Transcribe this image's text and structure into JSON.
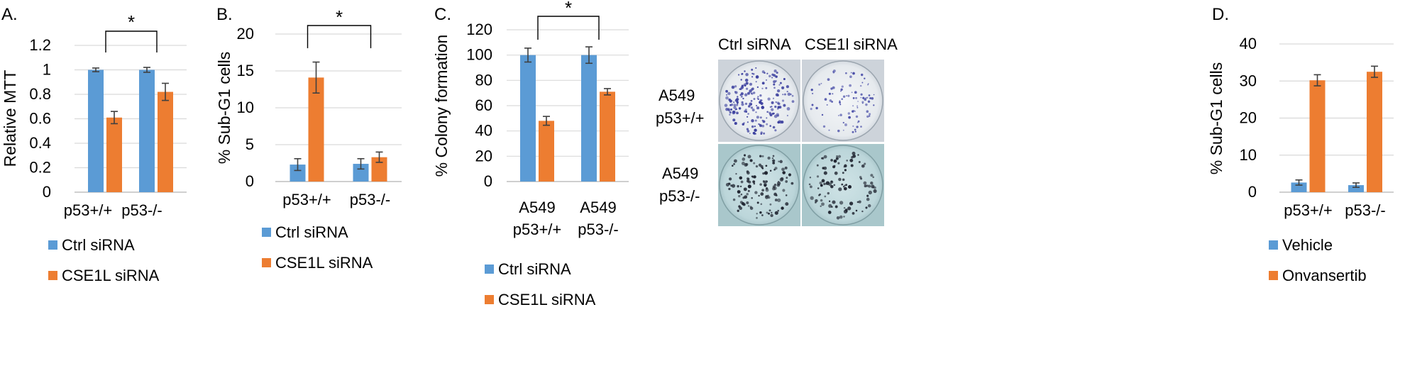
{
  "colors": {
    "ctrl": "#5B9BD5",
    "cse1l": "#ED7D31",
    "grid": "#D9D9D9",
    "axis": "#BFBFBF",
    "err": "#404040"
  },
  "chart_data": [
    {
      "panel": "A.",
      "type": "bar",
      "ylabel": "Relative MTT",
      "ylim": [
        0,
        1.2
      ],
      "yticks": [
        "0",
        "0.2",
        "0.4",
        "0.6",
        "0.8",
        "1",
        "1.2"
      ],
      "categories": [
        "p53+/+",
        "p53-/-"
      ],
      "series": [
        {
          "name": "Ctrl siRNA",
          "values": [
            1.0,
            1.0
          ],
          "errors": [
            0.015,
            0.02
          ]
        },
        {
          "name": "CSE1L siRNA",
          "values": [
            0.61,
            0.82
          ],
          "errors": [
            0.05,
            0.07
          ]
        }
      ],
      "significance": [
        {
          "label": "*",
          "between": [
            0,
            1
          ]
        }
      ]
    },
    {
      "panel": "B.",
      "type": "bar",
      "ylabel": "% Sub-G1 cells",
      "ylim": [
        0,
        20
      ],
      "yticks": [
        "0",
        "5",
        "10",
        "15",
        "20"
      ],
      "categories": [
        "p53+/+",
        "p53-/-"
      ],
      "series": [
        {
          "name": "Ctrl siRNA",
          "values": [
            2.3,
            2.4
          ],
          "errors": [
            0.8,
            0.7
          ]
        },
        {
          "name": "CSE1L siRNA",
          "values": [
            14.1,
            3.3
          ],
          "errors": [
            2.1,
            0.7
          ]
        }
      ],
      "significance": [
        {
          "label": "*",
          "between": [
            0,
            1
          ]
        }
      ]
    },
    {
      "panel": "C.",
      "type": "bar",
      "ylabel": "% Colony formation",
      "ylim": [
        0,
        120
      ],
      "yticks": [
        "0",
        "20",
        "40",
        "60",
        "80",
        "100",
        "120"
      ],
      "categories": [
        [
          "A549",
          "p53+/+"
        ],
        [
          "A549",
          "p53-/-"
        ]
      ],
      "series": [
        {
          "name": "Ctrl siRNA",
          "values": [
            100,
            100
          ],
          "errors": [
            5.5,
            6.5
          ]
        },
        {
          "name": "CSE1L siRNA",
          "values": [
            48,
            71
          ],
          "errors": [
            3.5,
            2.5
          ]
        }
      ],
      "significance": [
        {
          "label": "*",
          "between": [
            0,
            1
          ]
        }
      ]
    },
    {
      "panel": "D.",
      "type": "bar",
      "ylabel": "% Sub-G1 cells",
      "ylim": [
        0,
        40
      ],
      "yticks": [
        "0",
        "10",
        "20",
        "30",
        "40"
      ],
      "categories": [
        "p53+/+",
        "p53-/-"
      ],
      "series": [
        {
          "name": "Vehicle",
          "values": [
            2.6,
            1.9
          ],
          "errors": [
            0.7,
            0.6
          ]
        },
        {
          "name": "Onvansertib",
          "values": [
            30.2,
            32.5
          ],
          "errors": [
            1.5,
            1.5
          ]
        }
      ],
      "significance": []
    }
  ],
  "colony_photo": {
    "col_labels": [
      "Ctrl siRNA",
      "CSE1l siRNA"
    ],
    "row_labels": [
      [
        "A549",
        "p53+/+"
      ],
      [
        "A549",
        "p53-/-"
      ]
    ]
  }
}
